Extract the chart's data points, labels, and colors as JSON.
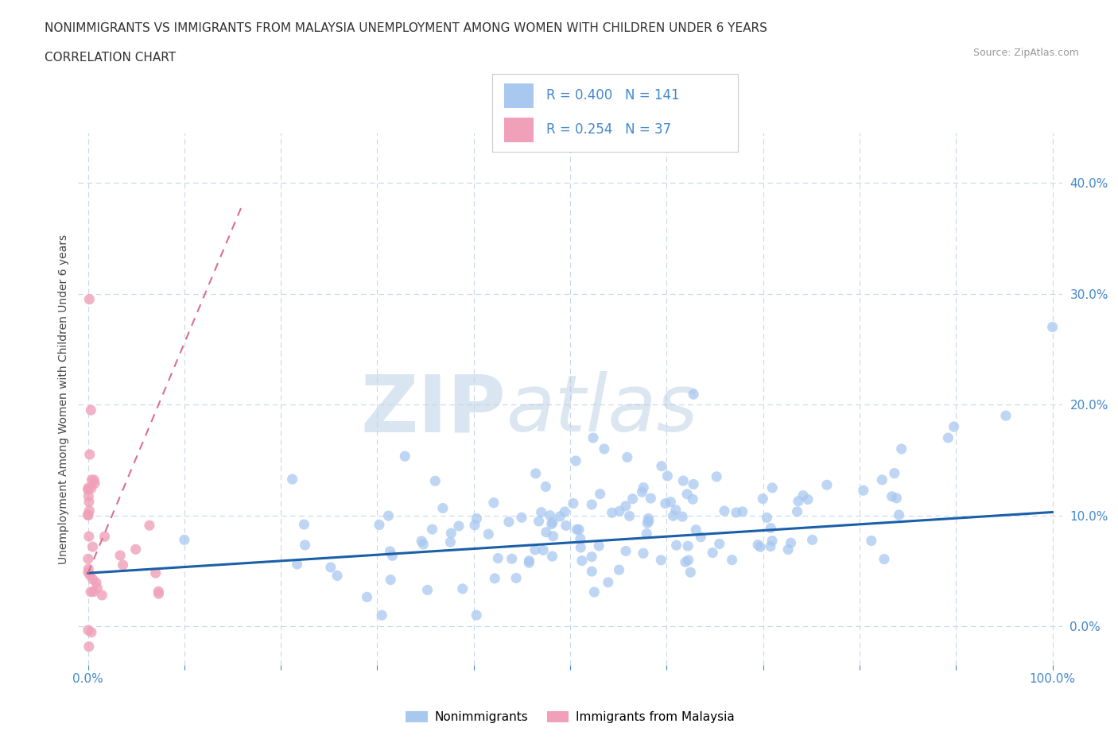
{
  "title_line1": "NONIMMIGRANTS VS IMMIGRANTS FROM MALAYSIA UNEMPLOYMENT AMONG WOMEN WITH CHILDREN UNDER 6 YEARS",
  "title_line2": "CORRELATION CHART",
  "source_text": "Source: ZipAtlas.com",
  "ylabel": "Unemployment Among Women with Children Under 6 years",
  "xlim": [
    -0.01,
    1.01
  ],
  "ylim": [
    -0.035,
    0.445
  ],
  "blue_R": 0.4,
  "blue_N": 141,
  "pink_R": 0.254,
  "pink_N": 37,
  "blue_color": "#a8c8f0",
  "pink_color": "#f0a0b8",
  "blue_line_color": "#1a5fa8",
  "pink_line_color": "#d87090",
  "legend_label_blue": "Nonimmigrants",
  "legend_label_pink": "Immigrants from Malaysia",
  "watermark_zip": "ZIP",
  "watermark_atlas": "atlas",
  "background_color": "#ffffff",
  "grid_color": "#c8d8e8",
  "tick_color": "#4488cc",
  "seed": 42,
  "blue_trend_x0": 0.0,
  "blue_trend_y0": 0.048,
  "blue_trend_x1": 1.0,
  "blue_trend_y1": 0.103,
  "pink_trend_x0": 0.0,
  "pink_trend_y0": 0.048,
  "pink_trend_x1": 0.16,
  "pink_trend_y1": 0.38
}
